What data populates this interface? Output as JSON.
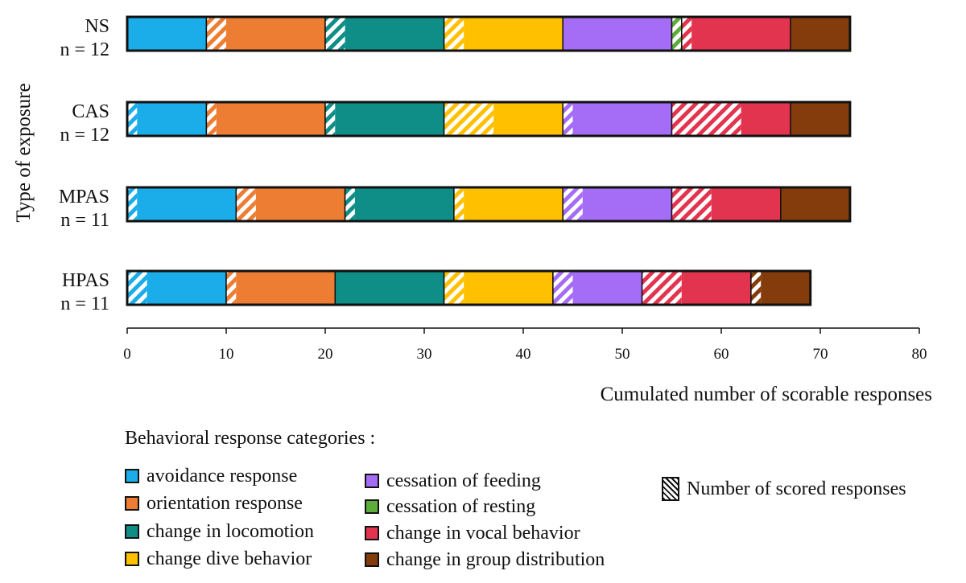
{
  "chart_data": {
    "type": "stacked-horizontal-bar",
    "title": "",
    "ylabel": "Type of exposure",
    "xlabel": "Cumulated number of scorable responses",
    "xlim": [
      0,
      80
    ],
    "xticks": [
      0,
      10,
      20,
      30,
      40,
      50,
      60,
      70,
      80
    ],
    "categories": [
      {
        "name": "NS",
        "n": "n = 12"
      },
      {
        "name": "CAS",
        "n": "n = 12"
      },
      {
        "name": "MPAS",
        "n": "n = 11"
      },
      {
        "name": "HPAS",
        "n": "n = 11"
      }
    ],
    "series": [
      {
        "name": "avoidance response",
        "color": "#1AADEA",
        "scored": [
          0,
          1,
          1,
          2
        ],
        "total": [
          8,
          8,
          11,
          10
        ]
      },
      {
        "name": "orientation response",
        "color": "#ED7D32",
        "scored": [
          2,
          1,
          2,
          1
        ],
        "total": [
          12,
          12,
          11,
          11
        ]
      },
      {
        "name": "change in locomotion",
        "color": "#0E8E87",
        "scored": [
          2,
          1,
          1,
          0
        ],
        "total": [
          12,
          12,
          11,
          11
        ]
      },
      {
        "name": "change dive behavior",
        "color": "#FFC000",
        "scored": [
          2,
          5,
          1,
          2
        ],
        "total": [
          12,
          12,
          11,
          11
        ]
      },
      {
        "name": "cessation of feeding",
        "color": "#A56CF5",
        "scored": [
          0,
          1,
          2,
          2
        ],
        "total": [
          11,
          11,
          11,
          9
        ]
      },
      {
        "name": "cessation of resting",
        "color": "#5DAD3A",
        "scored": [
          1,
          0,
          0,
          0
        ],
        "total": [
          1,
          0,
          0,
          0
        ]
      },
      {
        "name": "change in vocal behavior",
        "color": "#E3344F",
        "scored": [
          1,
          7,
          4,
          4
        ],
        "total": [
          11,
          12,
          11,
          11
        ]
      },
      {
        "name": "change in group distribution",
        "color": "#843C0C",
        "scored": [
          0,
          0,
          0,
          1
        ],
        "total": [
          6,
          6,
          7,
          6
        ]
      }
    ]
  },
  "legend": {
    "title": "Behavioral response categories :",
    "items": [
      "avoidance response",
      "orientation response",
      "change in locomotion",
      "change dive behavior",
      "cessation of feeding",
      "cessation of resting",
      "change in vocal behavior",
      "change in group distribution"
    ],
    "hatch_label": "Number of scored responses"
  }
}
